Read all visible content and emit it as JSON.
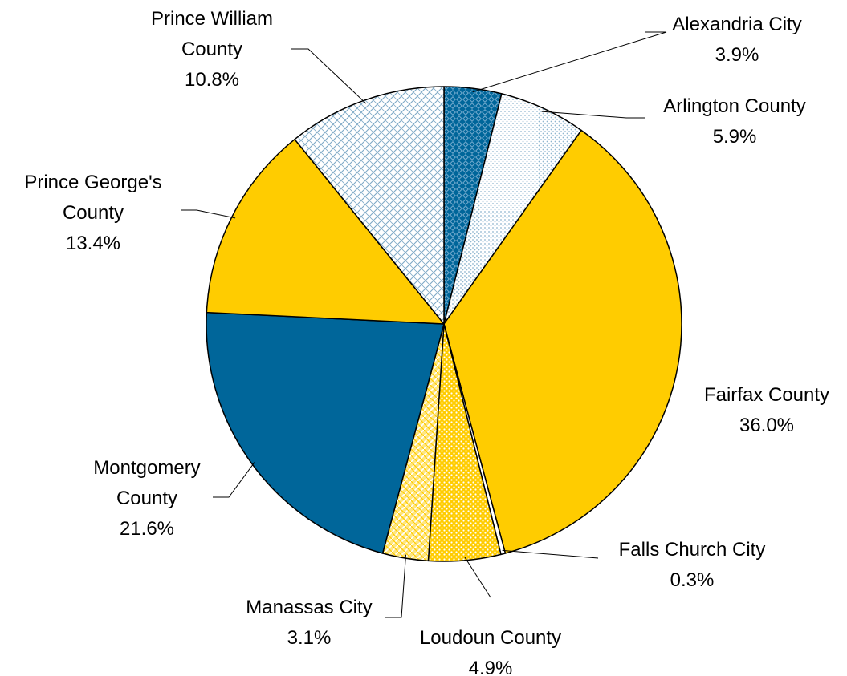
{
  "chart_data": {
    "type": "pie",
    "title": "",
    "slices": [
      {
        "label_lines": [
          "Alexandria City"
        ],
        "value": 3.9,
        "value_label": "3.9%",
        "color": "#00669a",
        "pattern": "diamond-check"
      },
      {
        "label_lines": [
          "Arlington County"
        ],
        "value": 5.9,
        "value_label": "5.9%",
        "color": "#ffffff",
        "pattern": "fine-dots"
      },
      {
        "label_lines": [
          "Fairfax County"
        ],
        "value": 36.0,
        "value_label": "36.0%",
        "color": "#ffcc00",
        "pattern": "solid"
      },
      {
        "label_lines": [
          "Falls Church City"
        ],
        "value": 0.3,
        "value_label": "0.3%",
        "color": "#ffffff",
        "pattern": "solid"
      },
      {
        "label_lines": [
          "Loudoun County"
        ],
        "value": 4.9,
        "value_label": "4.9%",
        "color": "#ffcc00",
        "pattern": "yellow-dots"
      },
      {
        "label_lines": [
          "Manassas City"
        ],
        "value": 3.1,
        "value_label": "3.1%",
        "color": "#ffcc00",
        "pattern": "yellow-weave"
      },
      {
        "label_lines": [
          "Montgomery",
          "County"
        ],
        "value": 21.6,
        "value_label": "21.6%",
        "color": "#00669a",
        "pattern": "solid"
      },
      {
        "label_lines": [
          "Prince George's",
          "County"
        ],
        "value": 13.4,
        "value_label": "13.4%",
        "color": "#ffcc00",
        "pattern": "solid"
      },
      {
        "label_lines": [
          "Prince William",
          "County"
        ],
        "value": 10.8,
        "value_label": "10.8%",
        "color": "#ffffff",
        "pattern": "blue-brick"
      }
    ],
    "start_angle_deg": 0,
    "direction": "clockwise",
    "legend": "none"
  }
}
